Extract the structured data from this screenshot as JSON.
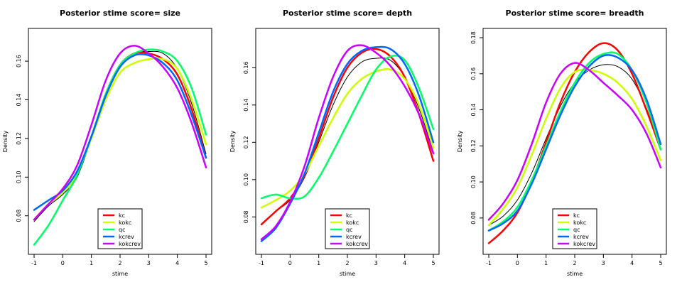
{
  "chart_data": [
    {
      "type": "line",
      "title": "Posterior stime  score= size",
      "xlabel": "stime",
      "ylabel": "Density",
      "xlim": [
        -1,
        5
      ],
      "ylim": [
        0.063,
        0.174
      ],
      "xticks": [
        "-1",
        "0",
        "1",
        "2",
        "3",
        "4",
        "5"
      ],
      "yticks": [
        "0.08",
        "0.10",
        "0.12",
        "0.14",
        "0.16"
      ],
      "legend_position": "bottom-center",
      "series": [
        {
          "name": "",
          "color": "#000000",
          "x": [
            -1,
            -0.5,
            0,
            0.5,
            1,
            1.5,
            2,
            2.5,
            3,
            3.5,
            4,
            4.5,
            5
          ],
          "y": [
            0.077,
            0.085,
            0.091,
            0.1,
            0.12,
            0.142,
            0.157,
            0.164,
            0.165,
            0.164,
            0.156,
            0.138,
            0.112
          ]
        },
        {
          "name": "kc",
          "color": "#ff0000",
          "x": [
            -1,
            -0.5,
            0,
            0.5,
            1,
            1.5,
            2,
            2.5,
            3,
            3.5,
            4,
            4.5,
            5
          ],
          "y": [
            0.078,
            0.086,
            0.092,
            0.102,
            0.121,
            0.143,
            0.158,
            0.164,
            0.164,
            0.161,
            0.153,
            0.135,
            0.11
          ]
        },
        {
          "name": "kokc",
          "color": "#ccff00",
          "x": [
            -1,
            -0.5,
            0,
            0.5,
            1,
            1.5,
            2,
            2.5,
            3,
            3.5,
            4,
            4.5,
            5
          ],
          "y": [
            0.078,
            0.086,
            0.092,
            0.102,
            0.12,
            0.14,
            0.154,
            0.159,
            0.161,
            0.161,
            0.156,
            0.14,
            0.117
          ]
        },
        {
          "name": "qc",
          "color": "#00ff66",
          "x": [
            -1,
            -0.5,
            0,
            0.5,
            1,
            1.5,
            2,
            2.5,
            3,
            3.5,
            4,
            4.5,
            5
          ],
          "y": [
            0.065,
            0.075,
            0.088,
            0.101,
            0.121,
            0.143,
            0.158,
            0.164,
            0.166,
            0.165,
            0.16,
            0.146,
            0.122
          ]
        },
        {
          "name": "kcrev",
          "color": "#0066ff",
          "x": [
            -1,
            -0.5,
            0,
            0.5,
            1,
            1.5,
            2,
            2.5,
            3,
            3.5,
            4,
            4.5,
            5
          ],
          "y": [
            0.083,
            0.088,
            0.093,
            0.103,
            0.121,
            0.142,
            0.157,
            0.163,
            0.163,
            0.159,
            0.15,
            0.132,
            0.11
          ]
        },
        {
          "name": "kokcrev",
          "color": "#cc00ff",
          "x": [
            -1,
            -0.5,
            0,
            0.5,
            1,
            1.5,
            2,
            2.5,
            3,
            3.5,
            4,
            4.5,
            5
          ],
          "y": [
            0.078,
            0.086,
            0.094,
            0.106,
            0.127,
            0.15,
            0.164,
            0.168,
            0.164,
            0.157,
            0.146,
            0.128,
            0.105
          ]
        }
      ]
    },
    {
      "type": "line",
      "title": "Posterior stime  score= depth",
      "xlabel": "stime",
      "ylabel": "Density",
      "xlim": [
        -1,
        5
      ],
      "ylim": [
        0.063,
        0.178
      ],
      "xticks": [
        "-1",
        "0",
        "1",
        "2",
        "3",
        "4",
        "5"
      ],
      "yticks": [
        "0.08",
        "0.10",
        "0.12",
        "0.14",
        "0.16"
      ],
      "legend_position": "bottom-center",
      "series": [
        {
          "name": "",
          "color": "#000000",
          "x": [
            -1,
            -0.5,
            0,
            0.5,
            1,
            1.5,
            2,
            2.5,
            3,
            3.5,
            4,
            4.5,
            5
          ],
          "y": [
            0.076,
            0.083,
            0.089,
            0.101,
            0.12,
            0.14,
            0.155,
            0.163,
            0.165,
            0.164,
            0.155,
            0.138,
            0.115
          ]
        },
        {
          "name": "kc",
          "color": "#ff0000",
          "x": [
            -1,
            -0.5,
            0,
            0.5,
            1,
            1.5,
            2,
            2.5,
            3,
            3.5,
            4,
            4.5,
            5
          ],
          "y": [
            0.076,
            0.083,
            0.09,
            0.102,
            0.122,
            0.144,
            0.16,
            0.168,
            0.17,
            0.166,
            0.155,
            0.135,
            0.11
          ]
        },
        {
          "name": "kokc",
          "color": "#ccff00",
          "x": [
            -1,
            -0.5,
            0,
            0.5,
            1,
            1.5,
            2,
            2.5,
            3,
            3.5,
            4,
            4.5,
            5
          ],
          "y": [
            0.085,
            0.089,
            0.094,
            0.103,
            0.118,
            0.133,
            0.146,
            0.154,
            0.158,
            0.159,
            0.154,
            0.14,
            0.117
          ]
        },
        {
          "name": "qc",
          "color": "#00ff66",
          "x": [
            -1,
            -0.5,
            0,
            0.5,
            1,
            1.5,
            2,
            2.5,
            3,
            3.5,
            4,
            4.5,
            5
          ],
          "y": [
            0.09,
            0.092,
            0.09,
            0.091,
            0.101,
            0.115,
            0.13,
            0.145,
            0.159,
            0.166,
            0.164,
            0.149,
            0.127
          ]
        },
        {
          "name": "kcrev",
          "color": "#0066ff",
          "x": [
            -1,
            -0.5,
            0,
            0.5,
            1,
            1.5,
            2,
            2.5,
            3,
            3.5,
            4,
            4.5,
            5
          ],
          "y": [
            0.067,
            0.074,
            0.087,
            0.103,
            0.125,
            0.147,
            0.162,
            0.169,
            0.171,
            0.17,
            0.162,
            0.145,
            0.12
          ]
        },
        {
          "name": "kokcrev",
          "color": "#cc00ff",
          "x": [
            -1,
            -0.5,
            0,
            0.5,
            1,
            1.5,
            2,
            2.5,
            3,
            3.5,
            4,
            4.5,
            5
          ],
          "y": [
            0.068,
            0.075,
            0.088,
            0.107,
            0.133,
            0.155,
            0.169,
            0.172,
            0.168,
            0.161,
            0.15,
            0.135,
            0.114
          ]
        }
      ]
    },
    {
      "type": "line",
      "title": "Posterior stime  score= breadth",
      "xlabel": "stime",
      "ylabel": "Density",
      "xlim": [
        -1,
        5
      ],
      "ylim": [
        0.063,
        0.182
      ],
      "xticks": [
        "-1",
        "0",
        "1",
        "2",
        "3",
        "4",
        "5"
      ],
      "yticks": [
        "0.08",
        "0.10",
        "0.12",
        "0.14",
        "0.16",
        "0.18"
      ],
      "legend_position": "bottom-center",
      "series": [
        {
          "name": "",
          "color": "#000000",
          "x": [
            -1,
            -0.5,
            0,
            0.5,
            1,
            1.5,
            2,
            2.5,
            3,
            3.5,
            4,
            4.5,
            5
          ],
          "y": [
            0.076,
            0.081,
            0.09,
            0.105,
            0.124,
            0.142,
            0.155,
            0.162,
            0.165,
            0.164,
            0.157,
            0.141,
            0.118
          ]
        },
        {
          "name": "kc",
          "color": "#ff0000",
          "x": [
            -1,
            -0.5,
            0,
            0.5,
            1,
            1.5,
            2,
            2.5,
            3,
            3.5,
            4,
            4.5,
            5
          ],
          "y": [
            0.066,
            0.073,
            0.083,
            0.1,
            0.122,
            0.144,
            0.161,
            0.172,
            0.177,
            0.173,
            0.16,
            0.14,
            0.118
          ]
        },
        {
          "name": "kokc",
          "color": "#ccff00",
          "x": [
            -1,
            -0.5,
            0,
            0.5,
            1,
            1.5,
            2,
            2.5,
            3,
            3.5,
            4,
            4.5,
            5
          ],
          "y": [
            0.076,
            0.085,
            0.097,
            0.115,
            0.135,
            0.152,
            0.161,
            0.162,
            0.16,
            0.155,
            0.146,
            0.131,
            0.112
          ]
        },
        {
          "name": "qc",
          "color": "#00ff66",
          "x": [
            -1,
            -0.5,
            0,
            0.5,
            1,
            1.5,
            2,
            2.5,
            3,
            3.5,
            4,
            4.5,
            5
          ],
          "y": [
            0.073,
            0.078,
            0.086,
            0.101,
            0.12,
            0.139,
            0.155,
            0.166,
            0.171,
            0.171,
            0.162,
            0.144,
            0.118
          ]
        },
        {
          "name": "kcrev",
          "color": "#0066ff",
          "x": [
            -1,
            -0.5,
            0,
            0.5,
            1,
            1.5,
            2,
            2.5,
            3,
            3.5,
            4,
            4.5,
            5
          ],
          "y": [
            0.073,
            0.077,
            0.084,
            0.099,
            0.118,
            0.137,
            0.153,
            0.164,
            0.17,
            0.169,
            0.162,
            0.146,
            0.121
          ]
        },
        {
          "name": "kokcrev",
          "color": "#cc00ff",
          "x": [
            -1,
            -0.5,
            0,
            0.5,
            1,
            1.5,
            2,
            2.5,
            3,
            3.5,
            4,
            4.5,
            5
          ],
          "y": [
            0.079,
            0.088,
            0.101,
            0.121,
            0.144,
            0.16,
            0.166,
            0.162,
            0.155,
            0.148,
            0.14,
            0.127,
            0.108
          ]
        }
      ]
    }
  ]
}
